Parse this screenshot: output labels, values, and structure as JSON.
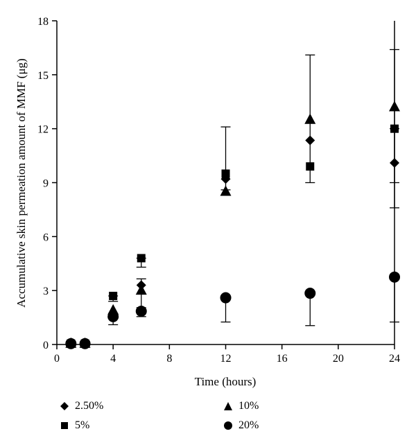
{
  "chart_data": {
    "type": "scatter",
    "title": "",
    "xlabel": "Time (hours)",
    "ylabel": "Accumulative skin permeation amount of MMF (μg)",
    "xlim": [
      0,
      24
    ],
    "ylim": [
      0,
      18
    ],
    "xticks": [
      0,
      4,
      8,
      12,
      16,
      20,
      24
    ],
    "yticks": [
      0,
      3,
      6,
      9,
      12,
      15,
      18
    ],
    "legend_position": "bottom",
    "series": [
      {
        "name": "2.50%",
        "marker": "diamond",
        "x": [
          1,
          2,
          4,
          6,
          12,
          18,
          24
        ],
        "y": [
          0.05,
          0.05,
          1.6,
          3.3,
          9.2,
          11.35,
          10.1
        ],
        "err": [
          0,
          0,
          0,
          0,
          0,
          0,
          0
        ]
      },
      {
        "name": "5%",
        "marker": "square",
        "x": [
          1,
          2,
          4,
          6,
          12,
          18,
          24
        ],
        "y": [
          0.05,
          0.05,
          2.7,
          4.8,
          9.5,
          9.9,
          12.0
        ],
        "err": [
          0,
          0,
          0.3,
          0.5,
          0,
          0,
          4.4
        ]
      },
      {
        "name": "10%",
        "marker": "triangle",
        "x": [
          1,
          2,
          4,
          6,
          12,
          18,
          24
        ],
        "y": [
          0.05,
          0.05,
          1.9,
          3.0,
          8.5,
          12.5,
          13.2
        ],
        "err": [
          0,
          0,
          0,
          0,
          0,
          0,
          0
        ]
      },
      {
        "name": "20%",
        "marker": "circle",
        "x": [
          1,
          2,
          4,
          6,
          12,
          18,
          24
        ],
        "y": [
          0.05,
          0.05,
          1.55,
          1.85,
          2.6,
          2.85,
          3.75
        ],
        "err": [
          0,
          0,
          0.45,
          0.3,
          1.35,
          1.8,
          2.5
        ]
      }
    ],
    "extra_error_bars": [
      {
        "x": 6,
        "low": 2.05,
        "high": 3.65
      },
      {
        "x": 12,
        "low": 8.6,
        "high": 12.1
      },
      {
        "x": 18,
        "low": 9.0,
        "high": 16.1
      },
      {
        "x": 24,
        "low": 9.0,
        "high": 16.4
      }
    ]
  }
}
